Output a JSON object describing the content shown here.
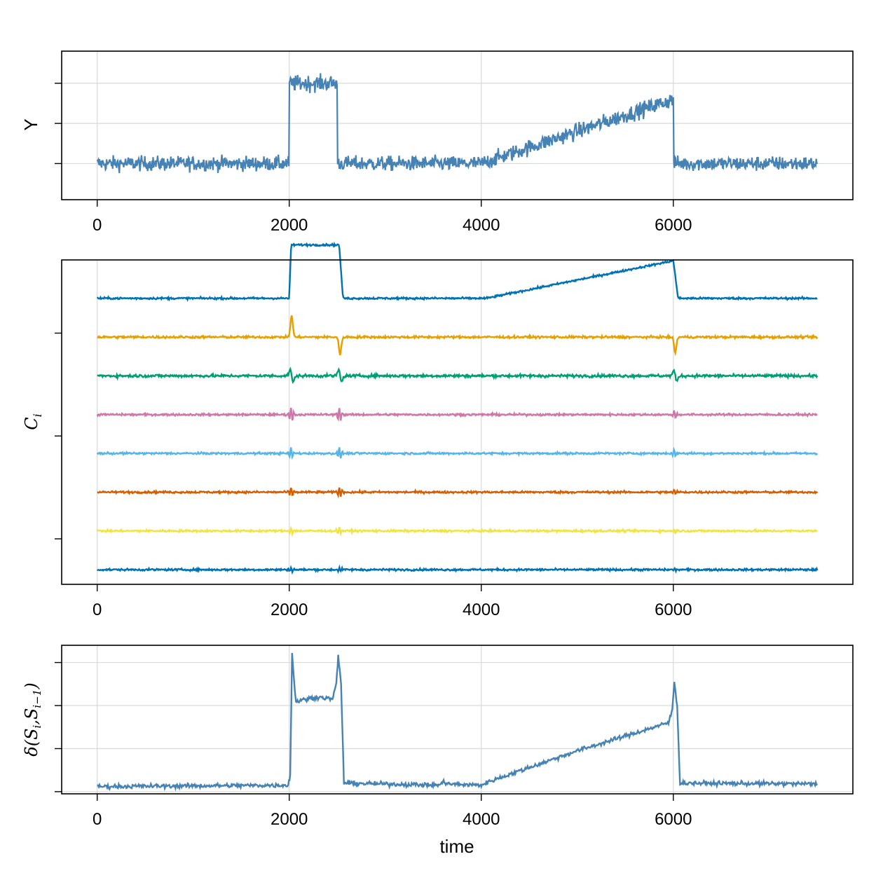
{
  "chart_data": [
    {
      "type": "line",
      "panel": "top",
      "ylabel": "Y",
      "xlabel": "",
      "xticks": [
        0,
        2000,
        4000,
        6000
      ],
      "xlim": [
        -370,
        7870
      ],
      "ylim": [
        -0.9,
        2.8
      ],
      "yticks": [
        0,
        1,
        2
      ],
      "grid": true,
      "series": [
        {
          "color": "#4682b4",
          "segments": [
            {
              "x": [
                0,
                2000
              ],
              "level": [
                0.0,
                0.0
              ],
              "noise": 0.13
            },
            {
              "x": [
                2000,
                2500
              ],
              "level": [
                2.0,
                2.0
              ],
              "noise": 0.14
            },
            {
              "x": [
                2500,
                4000
              ],
              "level": [
                0.0,
                0.0
              ],
              "noise": 0.13
            },
            {
              "x": [
                4000,
                6000
              ],
              "level": [
                0.0,
                1.6
              ],
              "noise": 0.14
            },
            {
              "x": [
                6000,
                7500
              ],
              "level": [
                0.0,
                0.0
              ],
              "noise": 0.13
            }
          ]
        }
      ]
    },
    {
      "type": "line",
      "panel": "middle",
      "ylabel": "C_i",
      "xlabel": "",
      "xticks": [
        0,
        2000,
        4000,
        6000
      ],
      "xlim": [
        -370,
        7870
      ],
      "ylim": [
        -0.25,
        7.95
      ],
      "yticks": [
        0.9,
        3.5,
        6.1
      ],
      "grid": true,
      "series": [
        {
          "offset": 7,
          "color": "#0072b2"
        },
        {
          "offset": 6,
          "color": "#e69f00"
        },
        {
          "offset": 5,
          "color": "#009e73"
        },
        {
          "offset": 4,
          "color": "#cc79a7"
        },
        {
          "offset": 3,
          "color": "#56b4e9"
        },
        {
          "offset": 2,
          "color": "#d55e00"
        },
        {
          "offset": 1,
          "color": "#f0e442"
        },
        {
          "offset": 0,
          "color": "#0072b2"
        }
      ]
    },
    {
      "type": "line",
      "panel": "bottom",
      "ylabel": "δ(S_i,S_{i-1})",
      "xlabel": "time",
      "xticks": [
        0,
        2000,
        4000,
        6000
      ],
      "xlim": [
        -370,
        7870
      ],
      "ylim": [
        -0.05,
        3.4
      ],
      "yticks": [
        0,
        1,
        2,
        3
      ],
      "grid": true,
      "series": [
        {
          "color": "#4682b4",
          "points": [
            [
              0,
              0.12
            ],
            [
              1990,
              0.15
            ],
            [
              2010,
              0.4
            ],
            [
              2030,
              3.2
            ],
            [
              2060,
              2.3
            ],
            [
              2070,
              2.1
            ],
            [
              2300,
              2.2
            ],
            [
              2450,
              2.15
            ],
            [
              2490,
              2.5
            ],
            [
              2510,
              3.15
            ],
            [
              2540,
              2.5
            ],
            [
              2570,
              0.2
            ],
            [
              3580,
              0.15
            ],
            [
              3600,
              0.28
            ],
            [
              3630,
              0.18
            ],
            [
              4000,
              0.15
            ],
            [
              4100,
              0.25
            ],
            [
              5000,
              0.95
            ],
            [
              5950,
              1.6
            ],
            [
              5990,
              1.9
            ],
            [
              6010,
              2.55
            ],
            [
              6040,
              2.0
            ],
            [
              6070,
              0.2
            ],
            [
              7500,
              0.18
            ]
          ]
        }
      ]
    }
  ],
  "labels": {
    "top_ylabel": "Y",
    "middle_ylabel": "C",
    "middle_ylabel_sub": "i",
    "bottom_ylabel": "δ(S",
    "bottom_ylabel_sub1": "i",
    "bottom_ylabel_mid": ",S",
    "bottom_ylabel_sub2": "i−1",
    "bottom_ylabel_end": ")",
    "xlabel": "time",
    "xtick_0": "0",
    "xtick_1": "2000",
    "xtick_2": "4000",
    "xtick_3": "6000"
  }
}
